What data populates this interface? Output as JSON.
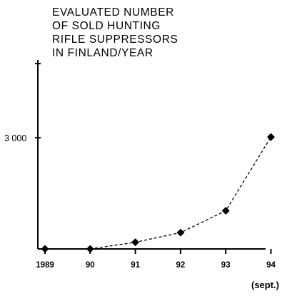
{
  "chart_data": {
    "type": "line",
    "title_lines": [
      "EVALUATED NUMBER",
      "OF SOLD HUNTING",
      "RIFLE  SUPPRESSORS",
      "IN FINLAND/YEAR"
    ],
    "x": [
      "1989",
      "90",
      "91",
      "92",
      "93",
      "94"
    ],
    "series": [
      {
        "values": [
          0,
          0,
          180,
          440,
          1030,
          3020
        ]
      }
    ],
    "ylim": [
      0,
      5100
    ],
    "y_ticks": [
      {
        "value": 3000,
        "label": "3 000"
      },
      {
        "value": 5000,
        "label": ""
      }
    ],
    "annotation": "(sept.)",
    "grid": false,
    "line_style": "dashed",
    "marker": "diamond",
    "colors": {
      "line": "#000000",
      "marker": "#000000",
      "axis": "#000000"
    }
  }
}
